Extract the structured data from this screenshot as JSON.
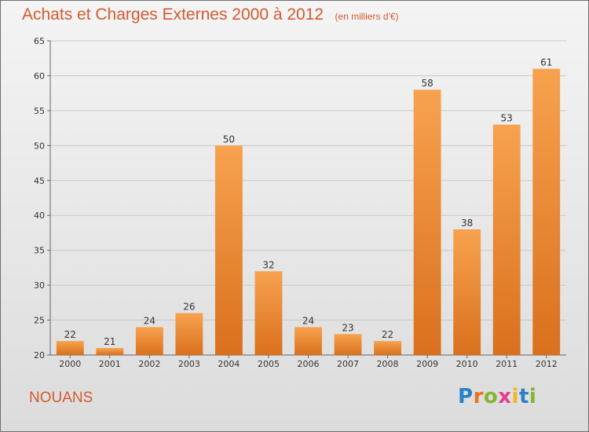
{
  "header": {
    "title": "Achats et Charges Externes 2000 à 2012",
    "unit": "(en milliers d'€)"
  },
  "commune": "NOUANS",
  "logo": {
    "text": "Proxiti",
    "letter_colors": [
      "#2a7fc9",
      "#e8731c",
      "#84b630",
      "#e63d8b",
      "#f1b61b",
      "#2a7fc9",
      "#84b630"
    ]
  },
  "colors": {
    "title": "#d35a2e",
    "bar_top": "#f7a24f",
    "bar_bottom": "#d9701d"
  },
  "chart_data": {
    "type": "bar",
    "title": "Achats et Charges Externes 2000 à 2012",
    "xlabel": "",
    "ylabel": "",
    "categories": [
      "2000",
      "2001",
      "2002",
      "2003",
      "2004",
      "2005",
      "2006",
      "2007",
      "2008",
      "2009",
      "2010",
      "2011",
      "2012"
    ],
    "values": [
      22,
      21,
      24,
      26,
      50,
      32,
      24,
      23,
      22,
      58,
      38,
      53,
      61
    ],
    "ylim": [
      20,
      65
    ],
    "yticks": [
      20,
      25,
      30,
      35,
      40,
      45,
      50,
      55,
      60,
      65
    ],
    "grid": true
  }
}
